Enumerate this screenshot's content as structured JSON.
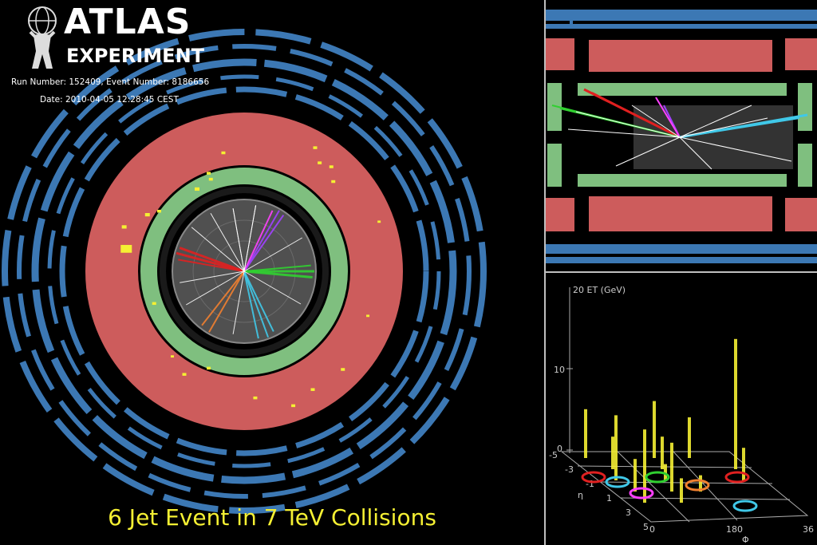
{
  "logo": {
    "line1": "ATLAS",
    "line2": "EXPERIMENT"
  },
  "event": {
    "run_line": "Run Number: 152409, Event Number: 8186656",
    "date_line": "Date: 2010-04-05 12:28:45 CEST"
  },
  "caption": "6 Jet Event in 7 TeV Collisions",
  "lego_plot": {
    "z_axis_label": "20 ET (GeV)",
    "z_ticks": [
      "10",
      "0"
    ],
    "eta_label": "η",
    "phi_label": "Φ",
    "eta_ticks": [
      "-5",
      "-3",
      "-1",
      "1",
      "3",
      "5"
    ],
    "phi_ticks": [
      "0",
      "180",
      "36"
    ]
  },
  "colors": {
    "muon_blue": "#3c78b4",
    "hadronic_red": "#cd5c5c",
    "em_green": "#7fbf7f",
    "deposit_yellow": "#f5f033",
    "jet_colors": [
      "#e02020",
      "#a040ff",
      "#30d030",
      "#40c8e8",
      "#f08030",
      "#ff40ff"
    ]
  }
}
